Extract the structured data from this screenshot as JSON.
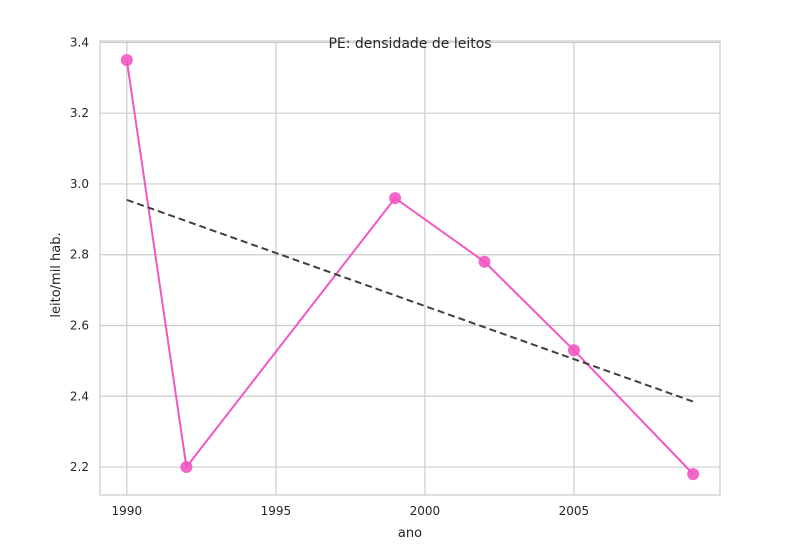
{
  "chart_data": {
    "type": "line",
    "title": "PE: densidade de leitos",
    "xlabel": "ano",
    "ylabel": "leito/mil hab.",
    "xlim": [
      1989.1,
      2009.9
    ],
    "ylim": [
      2.121,
      3.404
    ],
    "x_ticks": [
      1990,
      1995,
      2000,
      2005
    ],
    "y_ticks": [
      2.2,
      2.4,
      2.6,
      2.8,
      3.0,
      3.2,
      3.4
    ],
    "y_tick_labels": [
      "2.2",
      "2.4",
      "2.6",
      "2.8",
      "3.0",
      "3.2",
      "3.4"
    ],
    "grid": true,
    "series": [
      {
        "kind": "line-markers",
        "color": "#f257c4",
        "x": [
          1990,
          1992,
          1999,
          2002,
          2005,
          2009
        ],
        "y": [
          3.35,
          2.2,
          2.96,
          2.78,
          2.53,
          2.18
        ]
      },
      {
        "kind": "trend-dashed",
        "color": "#404040",
        "x": [
          1990,
          2009
        ],
        "y": [
          2.955,
          2.385
        ]
      }
    ]
  }
}
